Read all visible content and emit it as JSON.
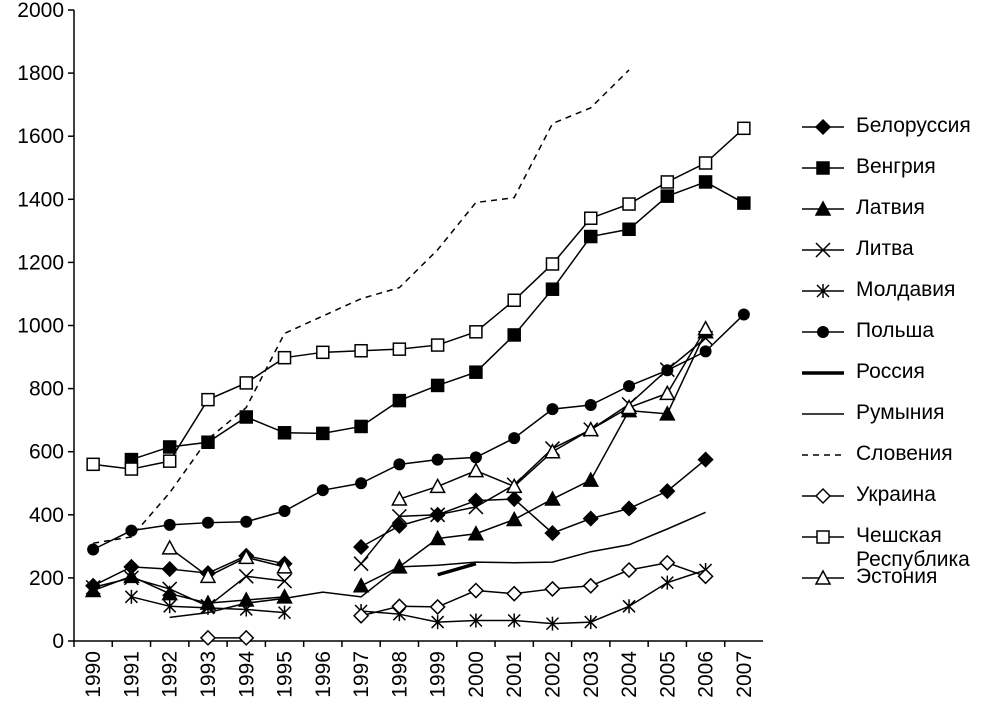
{
  "chart_data": {
    "type": "line",
    "categories": [
      "1990",
      "1991",
      "1992",
      "1993",
      "1994",
      "1995",
      "1996",
      "1997",
      "1998",
      "1999",
      "2000",
      "2001",
      "2002",
      "2003",
      "2004",
      "2005",
      "2006",
      "2007"
    ],
    "ylim": [
      0,
      2000
    ],
    "yticks": [
      0,
      200,
      400,
      600,
      800,
      1000,
      1200,
      1400,
      1600,
      1800,
      2000
    ],
    "series": [
      {
        "name": "Белоруссия",
        "color": "#000000",
        "marker": "diamond-filled",
        "values": [
          175,
          235,
          228,
          215,
          270,
          245,
          null,
          298,
          365,
          400,
          445,
          450,
          342,
          388,
          420,
          475,
          575,
          null
        ]
      },
      {
        "name": "Венгрия",
        "color": "#000000",
        "marker": "square-filled",
        "values": [
          null,
          575,
          615,
          630,
          710,
          660,
          658,
          680,
          762,
          810,
          852,
          970,
          1115,
          1282,
          1305,
          1410,
          1455,
          1388
        ]
      },
      {
        "name": "Латвия",
        "color": "#000000",
        "marker": "triangle-filled",
        "values": [
          160,
          205,
          150,
          120,
          130,
          140,
          null,
          175,
          235,
          325,
          340,
          385,
          450,
          510,
          730,
          720,
          980,
          null
        ]
      },
      {
        "name": "Литва",
        "color": "#000000",
        "marker": "x",
        "values": [
          170,
          200,
          165,
          110,
          205,
          190,
          null,
          245,
          395,
          400,
          425,
          495,
          610,
          670,
          750,
          860,
          960,
          null
        ]
      },
      {
        "name": "Молдавия",
        "color": "#000000",
        "marker": "asterisk",
        "values": [
          null,
          140,
          110,
          105,
          100,
          90,
          null,
          95,
          85,
          60,
          65,
          65,
          55,
          60,
          110,
          185,
          225,
          null
        ]
      },
      {
        "name": "Польша",
        "color": "#000000",
        "marker": "circle-filled",
        "values": [
          290,
          350,
          368,
          375,
          378,
          412,
          478,
          500,
          560,
          575,
          582,
          643,
          735,
          748,
          808,
          858,
          918,
          1035
        ]
      },
      {
        "name": "Россия",
        "color": "#000000",
        "marker": "thick",
        "values": [
          null,
          null,
          null,
          null,
          null,
          null,
          null,
          null,
          null,
          210,
          245,
          null,
          null,
          null,
          null,
          null,
          null,
          null
        ]
      },
      {
        "name": "Румыния",
        "color": "#000000",
        "marker": "thin",
        "values": [
          null,
          null,
          75,
          90,
          120,
          135,
          155,
          140,
          235,
          240,
          250,
          248,
          250,
          283,
          305,
          355,
          408,
          null
        ]
      },
      {
        "name": "Словения",
        "color": "#000000",
        "marker": "dashed",
        "values": [
          310,
          330,
          470,
          640,
          740,
          975,
          1030,
          1085,
          1120,
          1240,
          1390,
          1405,
          1640,
          1690,
          1810,
          null,
          null,
          null
        ]
      },
      {
        "name": "Украина",
        "color": "#000000",
        "marker": "diamond-open",
        "values": [
          null,
          null,
          null,
          10,
          10,
          null,
          null,
          80,
          110,
          108,
          160,
          150,
          165,
          175,
          225,
          248,
          205,
          null
        ]
      },
      {
        "name": "Чешская Республика",
        "color": "#000000",
        "marker": "square-open",
        "values": [
          560,
          545,
          570,
          765,
          818,
          898,
          915,
          920,
          925,
          938,
          980,
          1080,
          1195,
          1340,
          1385,
          1455,
          1515,
          1625
        ]
      },
      {
        "name": "Эстония",
        "color": "#000000",
        "marker": "triangle-open",
        "values": [
          null,
          null,
          295,
          205,
          265,
          235,
          null,
          null,
          450,
          490,
          540,
          490,
          600,
          670,
          740,
          785,
          990,
          null
        ]
      }
    ]
  }
}
